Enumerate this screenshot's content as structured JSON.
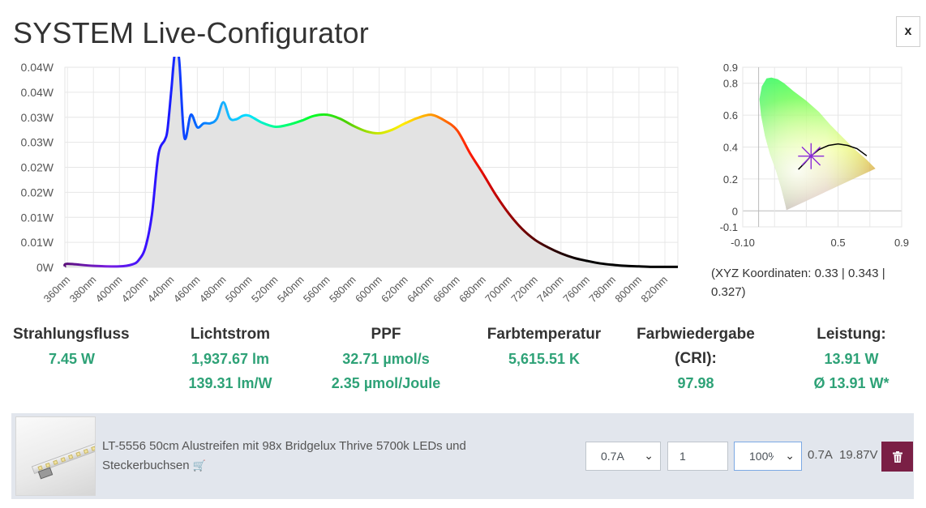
{
  "app": {
    "title": "SYSTEM Live-Configurator",
    "close_label": "x"
  },
  "chart_data": [
    {
      "type": "area",
      "ylim": [
        0,
        0.04
      ],
      "y_tick_labels": [
        "0W",
        "0.01W",
        "0.01W",
        "0.02W",
        "0.02W",
        "0.03W",
        "0.03W",
        "0.04W",
        "0.04W"
      ],
      "x_tick_labels": [
        "360nm",
        "380nm",
        "400nm",
        "420nm",
        "440nm",
        "460nm",
        "480nm",
        "500nm",
        "520nm",
        "540nm",
        "560nm",
        "580nm",
        "600nm",
        "620nm",
        "640nm",
        "660nm",
        "680nm",
        "700nm",
        "720nm",
        "740nm",
        "760nm",
        "780nm",
        "800nm",
        "820nm"
      ],
      "xlim": [
        358,
        830
      ],
      "grid": true,
      "x": [
        358,
        360,
        380,
        400,
        410,
        415,
        420,
        425,
        430,
        435,
        437,
        440,
        443,
        446,
        450,
        455,
        460,
        465,
        470,
        475,
        480,
        485,
        490,
        495,
        500,
        510,
        520,
        530,
        540,
        550,
        560,
        570,
        580,
        590,
        600,
        610,
        620,
        630,
        640,
        650,
        660,
        670,
        680,
        690,
        700,
        710,
        720,
        730,
        740,
        750,
        760,
        770,
        780,
        790,
        800,
        810,
        820,
        830
      ],
      "y": [
        0.0001,
        0.0007,
        0.0003,
        0.0002,
        0.0006,
        0.0015,
        0.004,
        0.0105,
        0.0225,
        0.0255,
        0.0275,
        0.0355,
        0.0435,
        0.0415,
        0.026,
        0.0305,
        0.028,
        0.0288,
        0.0288,
        0.0297,
        0.033,
        0.0298,
        0.0296,
        0.0303,
        0.0303,
        0.0289,
        0.0281,
        0.0285,
        0.0293,
        0.0303,
        0.0305,
        0.0297,
        0.0283,
        0.0272,
        0.0268,
        0.0275,
        0.0288,
        0.0299,
        0.0305,
        0.0294,
        0.0274,
        0.0228,
        0.0187,
        0.0144,
        0.0107,
        0.0077,
        0.0055,
        0.004,
        0.0028,
        0.0019,
        0.0013,
        0.0008,
        0.0005,
        0.0003,
        0.0002,
        0.0001,
        0.0001,
        0.0001
      ]
    },
    {
      "type": "scatter",
      "xlim": [
        -0.1,
        0.9
      ],
      "ylim": [
        -0.1,
        0.9
      ],
      "x_tick_labels": [
        "-0.10",
        "0.5",
        "0.9"
      ],
      "y_tick_labels": [
        "0.9",
        "0.8",
        "0.6",
        "0.4",
        "0.2",
        "0",
        "-0.1"
      ],
      "point": {
        "x": 0.33,
        "y": 0.343
      }
    }
  ],
  "xyz": {
    "text": "(XYZ Koordinaten: 0.33 | 0.343 | 0.327)"
  },
  "metrics": {
    "radiant_flux": {
      "label": "Strahlungsfluss",
      "value": "7.45 W"
    },
    "luminous_flux": {
      "label": "Lichtstrom",
      "value": "1,937.67 lm",
      "efficacy": "139.31 lm/W"
    },
    "ppf": {
      "label": "PPF",
      "value": "32.71 µmol/s",
      "efficiency": "2.35 µmol/Joule"
    },
    "color_temp": {
      "label": "Farbtemperatur",
      "value": "5,615.51 K"
    },
    "cri": {
      "label_line1": "Farbwiedergabe",
      "label_line2": "(CRI):",
      "value": "97.98"
    },
    "power": {
      "label": "Leistung:",
      "value": "13.91 W",
      "average": "Ø 13.91 W*"
    }
  },
  "product": {
    "name": "LT-5556 50cm Alustreifen mit 98x Bridgelux Thrive 5700k LEDs und Steckerbuchsen",
    "current_selected": "0.7A",
    "quantity": "1",
    "dimming_selected": "100%",
    "readout_current": "0.7A",
    "readout_voltage": "19.87V",
    "icons": {
      "cart": "shopping-cart-icon",
      "delete": "trash-icon"
    }
  }
}
